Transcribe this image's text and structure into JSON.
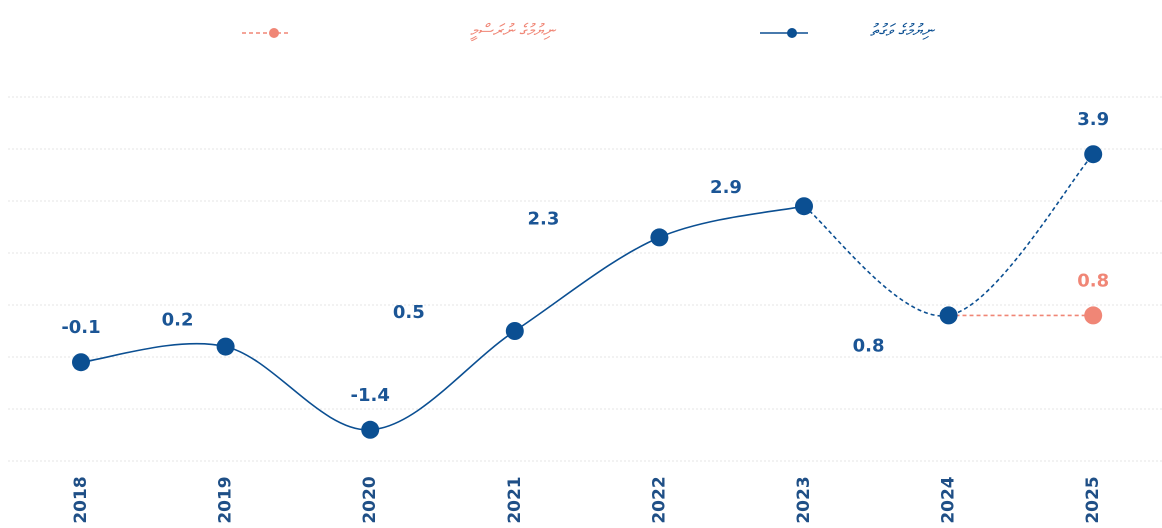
{
  "chart_data": {
    "type": "line",
    "categories": [
      "2018",
      "2019",
      "2020",
      "2021",
      "2022",
      "2023",
      "2024",
      "2025"
    ],
    "series": [
      {
        "name": "ނިޔުމުގެ ވަގުތު",
        "color": "#0b4f92",
        "values": [
          -0.1,
          0.2,
          -1.4,
          0.5,
          2.3,
          2.9,
          0.8,
          3.9
        ],
        "dashed_from": 5
      },
      {
        "name": "ނިޔުމުގެ ނުރަސްމީ",
        "color": "#f08676",
        "values": [
          null,
          null,
          null,
          null,
          null,
          null,
          0.8,
          0.8
        ],
        "dashed_from": 0
      }
    ],
    "ylim": [
      -2,
      5
    ],
    "yticks": [
      -2,
      -1,
      0,
      1,
      2,
      3,
      4,
      5
    ],
    "grid": true
  }
}
